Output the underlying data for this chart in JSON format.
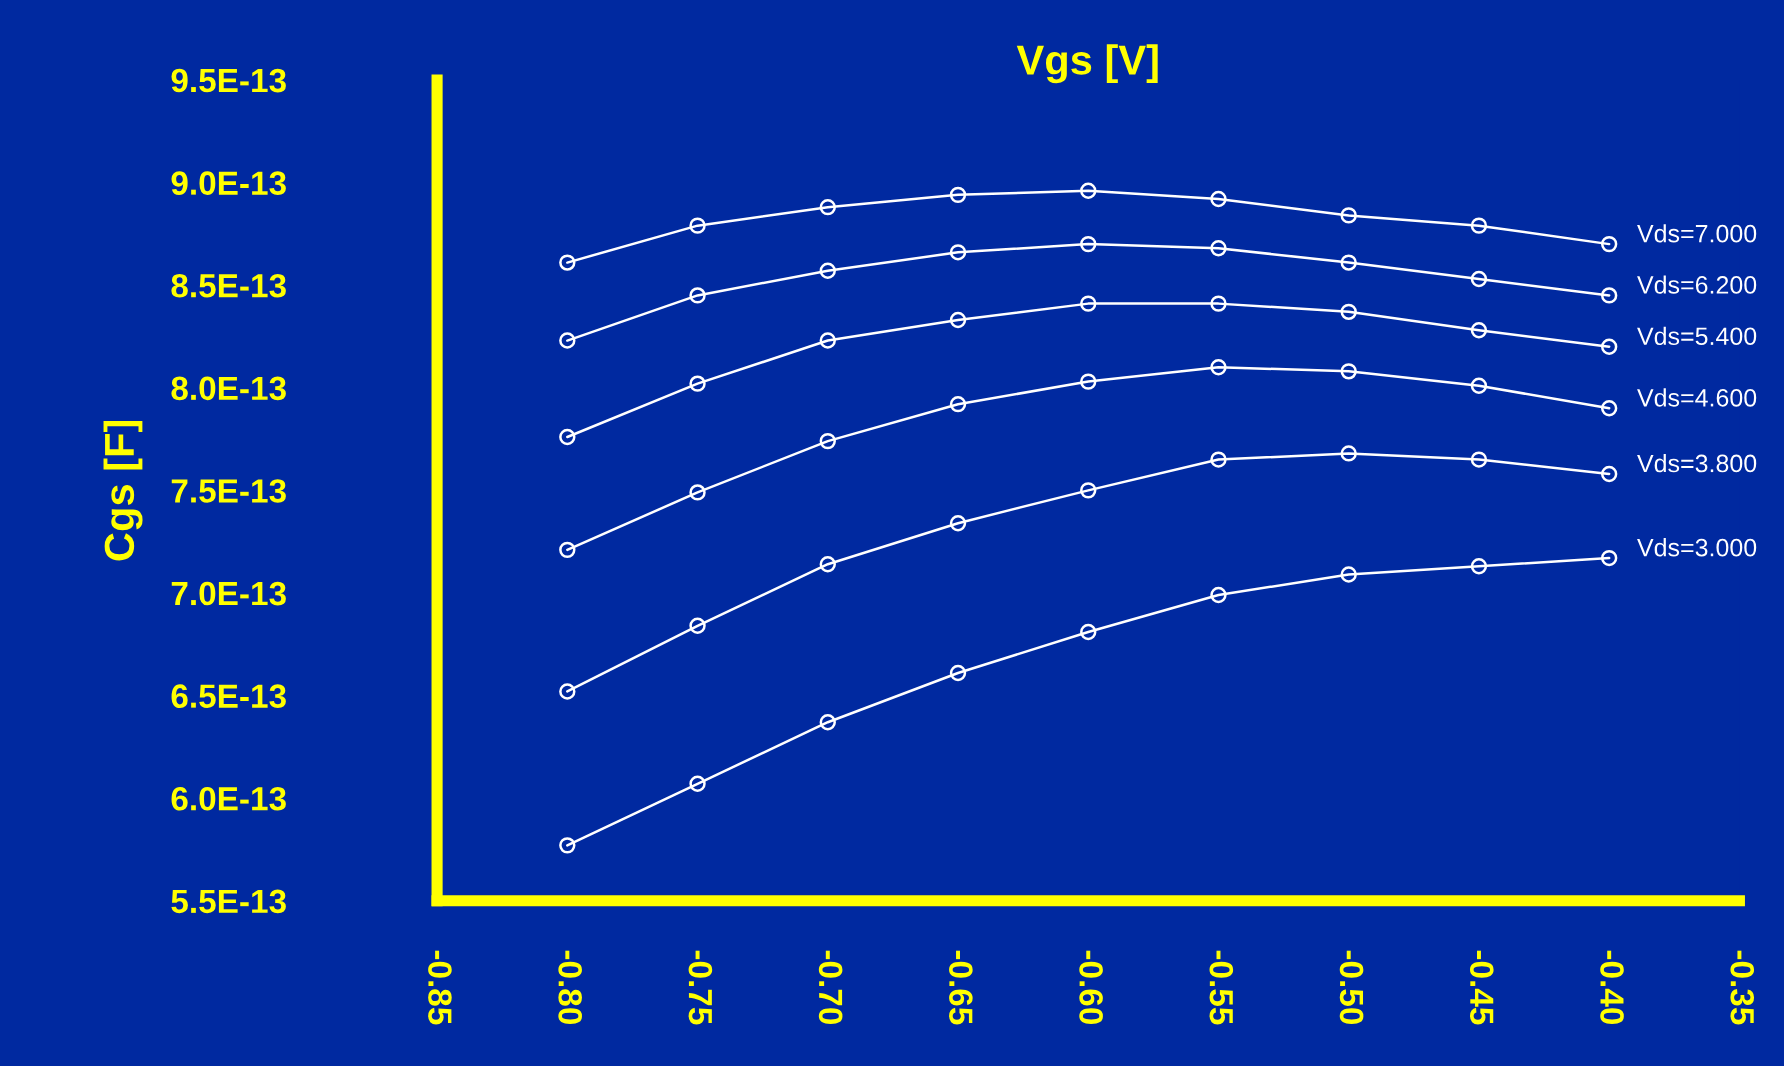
{
  "chart_data": {
    "type": "line",
    "xlabel": "Vgs [V]",
    "ylabel": "Cgs [F]",
    "x": [
      -0.8,
      -0.75,
      -0.7,
      -0.65,
      -0.6,
      -0.55,
      -0.5,
      -0.45,
      -0.4
    ],
    "series": [
      {
        "name": "Vds=7.000",
        "color": "#ffffff",
        "values": [
          8.61e-13,
          8.79e-13,
          8.88e-13,
          8.94e-13,
          8.96e-13,
          8.92e-13,
          8.84e-13,
          8.79e-13,
          8.7e-13
        ]
      },
      {
        "name": "Vds=6.200",
        "color": "#ffffff",
        "values": [
          8.23e-13,
          8.45e-13,
          8.57e-13,
          8.66e-13,
          8.7e-13,
          8.68e-13,
          8.61e-13,
          8.53e-13,
          8.45e-13
        ]
      },
      {
        "name": "Vds=5.400",
        "color": "#ffffff",
        "values": [
          7.76e-13,
          8.02e-13,
          8.23e-13,
          8.33e-13,
          8.41e-13,
          8.41e-13,
          8.37e-13,
          8.28e-13,
          8.2e-13
        ]
      },
      {
        "name": "Vds=4.600",
        "color": "#ffffff",
        "values": [
          7.21e-13,
          7.49e-13,
          7.74e-13,
          7.92e-13,
          8.03e-13,
          8.1e-13,
          8.08e-13,
          8.01e-13,
          7.9e-13
        ]
      },
      {
        "name": "Vds=3.800",
        "color": "#ffffff",
        "values": [
          6.52e-13,
          6.84e-13,
          7.14e-13,
          7.34e-13,
          7.5e-13,
          7.65e-13,
          7.68e-13,
          7.65e-13,
          7.58e-13
        ]
      },
      {
        "name": "Vds=3.000",
        "color": "#ffffff",
        "values": [
          5.77e-13,
          6.07e-13,
          6.37e-13,
          6.61e-13,
          6.81e-13,
          6.99e-13,
          7.09e-13,
          7.13e-13,
          7.17e-13
        ]
      }
    ],
    "xlim": [
      -0.85,
      -0.35
    ],
    "xticks": [
      {
        "value": -0.85,
        "label": "-0.85"
      },
      {
        "value": -0.8,
        "label": "-0.80"
      },
      {
        "value": -0.75,
        "label": "-0.75"
      },
      {
        "value": -0.7,
        "label": "-0.70"
      },
      {
        "value": -0.65,
        "label": "-0.65"
      },
      {
        "value": -0.6,
        "label": "-0.60"
      },
      {
        "value": -0.55,
        "label": "-0.55"
      },
      {
        "value": -0.5,
        "label": "-0.50"
      },
      {
        "value": -0.45,
        "label": "-0.45"
      },
      {
        "value": -0.4,
        "label": "-0.40"
      },
      {
        "value": -0.35,
        "label": "-0.35"
      }
    ],
    "ylim": [
      5.5e-13,
      9.5e-13
    ],
    "yticks": [
      {
        "value": 5.5e-13,
        "label": "5.5E-13"
      },
      {
        "value": 6e-13,
        "label": "6.0E-13"
      },
      {
        "value": 6.5e-13,
        "label": "6.5E-13"
      },
      {
        "value": 7e-13,
        "label": "7.0E-13"
      },
      {
        "value": 7.5e-13,
        "label": "7.5E-13"
      },
      {
        "value": 8e-13,
        "label": "8.0E-13"
      },
      {
        "value": 8.5e-13,
        "label": "8.5E-13"
      },
      {
        "value": 9e-13,
        "label": "9.0E-13"
      },
      {
        "value": 9.5e-13,
        "label": "9.5E-13"
      }
    ],
    "marker": "circle",
    "line_style": "solid",
    "grid": false,
    "legend": false
  }
}
